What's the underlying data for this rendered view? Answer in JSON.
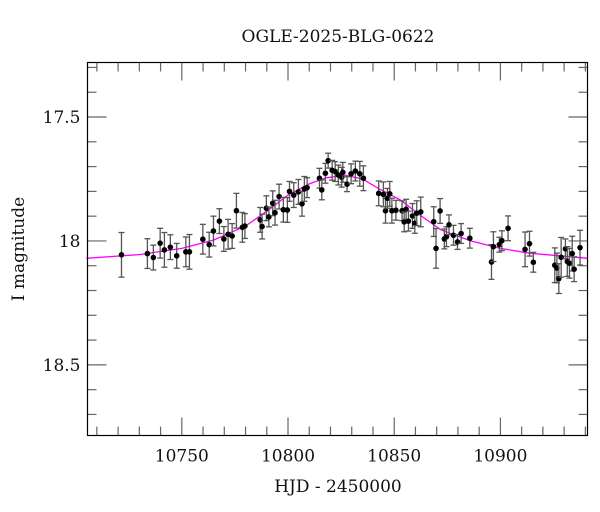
{
  "chart_data": {
    "type": "scatter",
    "title": "OGLE-2025-BLG-0622",
    "xlabel": "HJD - 2450000",
    "ylabel": "I magnitude",
    "xlim": [
      10705.6,
      10941
    ],
    "ylim": [
      17.28,
      18.785
    ],
    "y_inverted": true,
    "grid": false,
    "x_ticks": [
      10750,
      10800,
      10850,
      10900
    ],
    "x_tick_labels": [
      "10750",
      "10800",
      "10850",
      "10900"
    ],
    "y_ticks": [
      17.5,
      18,
      18.5
    ],
    "y_tick_labels": [
      "17.5",
      "18",
      "18.5"
    ],
    "x_minor_step": 10,
    "y_minor_step": 0.1,
    "colors": {
      "points": "#000000",
      "errorbars": "#555555",
      "model": "#ff00ff"
    },
    "points": [
      [
        10721.6,
        18.056,
        0.09
      ],
      [
        10733.8,
        18.051,
        0.06
      ],
      [
        10736.6,
        18.067,
        0.05
      ],
      [
        10739.8,
        18.009,
        0.06
      ],
      [
        10741.8,
        18.036,
        0.07
      ],
      [
        10744.6,
        18.025,
        0.05
      ],
      [
        10747.6,
        18.06,
        0.05
      ],
      [
        10751.9,
        18.044,
        0.06
      ],
      [
        10753.6,
        18.044,
        0.07
      ],
      [
        10759.9,
        17.993,
        0.06
      ],
      [
        10762.9,
        18.015,
        0.05
      ],
      [
        10764.9,
        17.96,
        0.06
      ],
      [
        10767.7,
        17.92,
        0.05
      ],
      [
        10769.8,
        17.992,
        0.05
      ],
      [
        10771.8,
        17.973,
        0.06
      ],
      [
        10773.7,
        17.98,
        0.05
      ],
      [
        10775.7,
        17.878,
        0.07
      ],
      [
        10778.5,
        17.945,
        0.06
      ],
      [
        10779.7,
        17.94,
        0.05
      ],
      [
        10786.9,
        17.915,
        0.05
      ],
      [
        10787.8,
        17.942,
        0.05
      ],
      [
        10789.8,
        17.868,
        0.05
      ],
      [
        10791.0,
        17.903,
        0.04
      ],
      [
        10792.8,
        17.848,
        0.05
      ],
      [
        10793.9,
        17.886,
        0.05
      ],
      [
        10795.8,
        17.821,
        0.05
      ],
      [
        10797.8,
        17.874,
        0.05
      ],
      [
        10799.7,
        17.875,
        0.05
      ],
      [
        10800.7,
        17.8,
        0.04
      ],
      [
        10802.7,
        17.815,
        0.05
      ],
      [
        10804.9,
        17.802,
        0.05
      ],
      [
        10806.6,
        17.85,
        0.05
      ],
      [
        10807.7,
        17.79,
        0.05
      ],
      [
        10809.0,
        17.785,
        0.04
      ],
      [
        10814.8,
        17.747,
        0.04
      ],
      [
        10815.9,
        17.794,
        0.04
      ],
      [
        10817.6,
        17.727,
        0.04
      ],
      [
        10818.9,
        17.676,
        0.03
      ],
      [
        10820.8,
        17.715,
        0.04
      ],
      [
        10822.2,
        17.72,
        0.04
      ],
      [
        10823.7,
        17.734,
        0.04
      ],
      [
        10825.3,
        17.743,
        0.04
      ],
      [
        10825.8,
        17.723,
        0.04
      ],
      [
        10827.8,
        17.771,
        0.03
      ],
      [
        10829.7,
        17.729,
        0.04
      ],
      [
        10831.7,
        17.718,
        0.04
      ],
      [
        10833.8,
        17.729,
        0.05
      ],
      [
        10835.5,
        17.747,
        0.05
      ],
      [
        10842.7,
        17.808,
        0.05
      ],
      [
        10844.9,
        17.812,
        0.05
      ],
      [
        10845.9,
        17.878,
        0.05
      ],
      [
        10846.8,
        17.828,
        0.04
      ],
      [
        10847.9,
        17.81,
        0.05
      ],
      [
        10848.9,
        17.878,
        0.05
      ],
      [
        10850.8,
        17.876,
        0.04
      ],
      [
        10853.7,
        17.878,
        0.04
      ],
      [
        10854.7,
        17.923,
        0.04
      ],
      [
        10855.6,
        17.872,
        0.04
      ],
      [
        10856.7,
        17.92,
        0.04
      ],
      [
        10858.6,
        17.899,
        0.05
      ],
      [
        10859.7,
        17.929,
        0.04
      ],
      [
        10860.6,
        17.888,
        0.05
      ],
      [
        10862.5,
        17.883,
        0.06
      ],
      [
        10868.6,
        17.922,
        0.06
      ],
      [
        10869.7,
        18.03,
        0.08
      ],
      [
        10871.6,
        17.879,
        0.05
      ],
      [
        10873.6,
        17.992,
        0.04
      ],
      [
        10874.6,
        17.983,
        0.04
      ],
      [
        10875.8,
        17.935,
        0.04
      ],
      [
        10877.9,
        17.977,
        0.04
      ],
      [
        10879.8,
        18.004,
        0.03
      ],
      [
        10881.5,
        17.97,
        0.04
      ],
      [
        10885.6,
        17.989,
        0.04
      ],
      [
        10895.8,
        18.085,
        0.07
      ],
      [
        10896.7,
        18.023,
        0.06
      ],
      [
        10899.5,
        18.015,
        0.03
      ],
      [
        10900.7,
        17.999,
        0.04
      ],
      [
        10903.6,
        17.949,
        0.05
      ],
      [
        10911.6,
        18.034,
        0.07
      ],
      [
        10913.7,
        18.011,
        0.05
      ],
      [
        10915.5,
        18.086,
        0.04
      ],
      [
        10925.6,
        18.098,
        0.07
      ],
      [
        10926.6,
        18.109,
        0.06
      ],
      [
        10927.5,
        18.152,
        0.06
      ],
      [
        10928.6,
        18.066,
        0.08
      ],
      [
        10930.6,
        18.032,
        0.04
      ],
      [
        10931.5,
        18.083,
        0.06
      ],
      [
        10932.5,
        18.09,
        0.06
      ],
      [
        10933.8,
        18.051,
        0.07
      ],
      [
        10934.7,
        18.114,
        0.05
      ],
      [
        10937.5,
        18.027,
        0.07
      ]
    ],
    "model": [
      [
        10705,
        18.07
      ],
      [
        10730,
        18.055
      ],
      [
        10750,
        18.03
      ],
      [
        10765,
        17.996
      ],
      [
        10780,
        17.94
      ],
      [
        10790,
        17.88
      ],
      [
        10800,
        17.815
      ],
      [
        10810,
        17.77
      ],
      [
        10818,
        17.745
      ],
      [
        10827,
        17.735
      ],
      [
        10835,
        17.75
      ],
      [
        10843,
        17.79
      ],
      [
        10853,
        17.835
      ],
      [
        10862,
        17.895
      ],
      [
        10872,
        17.955
      ],
      [
        10886,
        18.0
      ],
      [
        10900,
        18.03
      ],
      [
        10914,
        18.05
      ],
      [
        10928,
        18.06
      ],
      [
        10941,
        18.07
      ]
    ]
  }
}
